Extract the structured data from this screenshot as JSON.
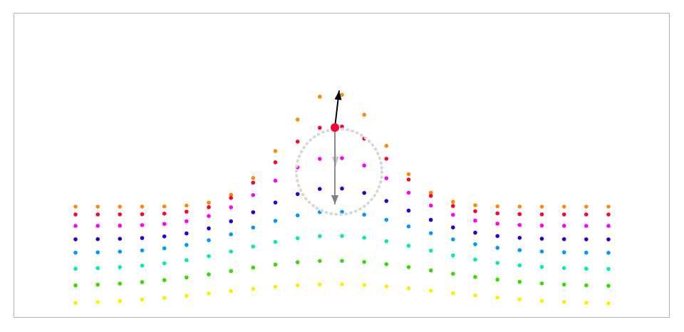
{
  "diagram": {
    "kind": "particle-wave-visualization",
    "frame_color": "#b3b3b3",
    "row_colors": [
      "#ff8c00",
      "#ff0033",
      "#ff00ff",
      "#2200dd",
      "#0099ff",
      "#00eeaa",
      "#33dd00",
      "#ffee00"
    ],
    "orbit_color": "#d9d9d9",
    "highlight_color": "#ff0033",
    "velocity_arrow_color": "#000000",
    "force_arrow_color": "#808080",
    "icons": [
      "highlighted-particle-marker",
      "velocity-arrow",
      "force-arrow",
      "orbit-circle"
    ]
  }
}
